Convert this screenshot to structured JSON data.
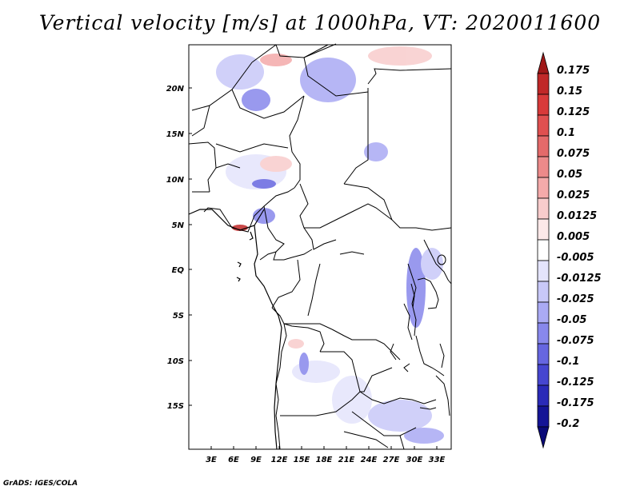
{
  "title": "Vertical velocity [m/s] at 1000hPa, VT: 2020011600",
  "footer": "GrADS: IGES/COLA",
  "map": {
    "lat_ticks": [
      "20N",
      "15N",
      "10N",
      "5N",
      "EQ",
      "5S",
      "10S",
      "15S"
    ],
    "lon_ticks": [
      "3E",
      "6E",
      "9E",
      "12E",
      "15E",
      "18E",
      "21E",
      "24E",
      "27E",
      "30E",
      "33E"
    ]
  },
  "colorbar": {
    "labels": [
      "0.175",
      "0.15",
      "0.125",
      "0.1",
      "0.075",
      "0.05",
      "0.025",
      "0.0125",
      "0.005",
      "-0.005",
      "-0.0125",
      "-0.025",
      "-0.05",
      "-0.075",
      "-0.1",
      "-0.125",
      "-0.175",
      "-0.2"
    ],
    "colors": [
      "#a01818",
      "#c02828",
      "#d83a3a",
      "#e05050",
      "#e46a6a",
      "#ec8a8a",
      "#f4aaaa",
      "#f8cccc",
      "#fce8e8",
      "#ffffff",
      "#e4e4fc",
      "#c8c8f8",
      "#aaaaf4",
      "#8888ec",
      "#6666e0",
      "#4646d0",
      "#2a2ab8",
      "#141496",
      "#0a0a78"
    ]
  }
}
